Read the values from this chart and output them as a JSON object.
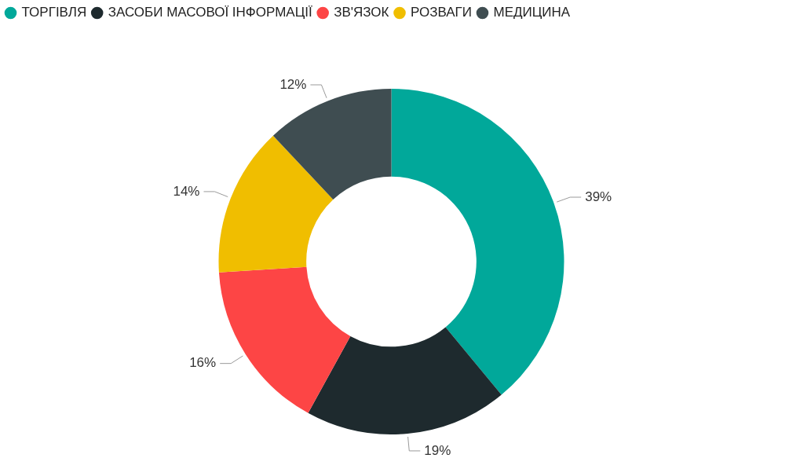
{
  "chart_data": {
    "type": "donut",
    "categories": [
      "ТОРГІВЛЯ",
      "ЗАСОБИ МАСОВОЇ ІНФОРМАЦІЇ",
      "ЗВ'ЯЗОК",
      "РОЗВАГИ",
      "МЕДИЦИНА"
    ],
    "values": [
      39,
      19,
      16,
      14,
      12
    ],
    "colors": [
      "#01a89a",
      "#1e2a2e",
      "#fd4545",
      "#f0be00",
      "#3f4d51"
    ],
    "value_labels": [
      "39%",
      "19%",
      "16%",
      "14%",
      "12%"
    ],
    "legend": "top left"
  }
}
